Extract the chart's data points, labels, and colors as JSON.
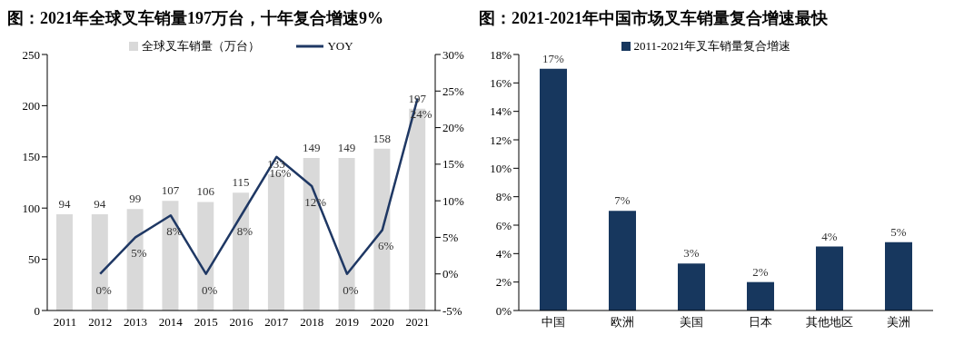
{
  "chart_data": [
    {
      "type": "bar",
      "title": "图：2021年全球叉车销量197万台，十年复合增速9%",
      "categories": [
        "2011",
        "2012",
        "2013",
        "2014",
        "2015",
        "2016",
        "2017",
        "2018",
        "2019",
        "2020",
        "2021"
      ],
      "series": [
        {
          "name": "全球叉车销量（万台）",
          "color": "#d9d9d9",
          "values": [
            94,
            94,
            99,
            107,
            106,
            115,
            133,
            149,
            149,
            158,
            197
          ],
          "value_labels": [
            "94",
            "94",
            "99",
            "107",
            "106",
            "115",
            "133",
            "149",
            "149",
            "158",
            "197"
          ]
        },
        {
          "name": "YOY",
          "type": "line",
          "axis": "y2",
          "color": "#1f3864",
          "values": [
            null,
            0,
            5,
            8,
            0,
            8,
            16,
            12,
            0,
            6,
            24
          ],
          "value_labels": [
            null,
            "0%",
            "5%",
            "8%",
            "0%",
            "8%",
            "16%",
            "12%",
            "0%",
            "6%",
            "24%"
          ]
        }
      ],
      "ylim": [
        0,
        250
      ],
      "yticks": [
        0,
        50,
        100,
        150,
        200,
        250
      ],
      "y2lim": [
        -5,
        30
      ],
      "y2ticks": [
        {
          "value": -5,
          "label": "-5%"
        },
        {
          "value": 0,
          "label": "0%"
        },
        {
          "value": 5,
          "label": "5%"
        },
        {
          "value": 10,
          "label": "10%"
        },
        {
          "value": 15,
          "label": "15%"
        },
        {
          "value": 20,
          "label": "20%"
        },
        {
          "value": 25,
          "label": "25%"
        },
        {
          "value": 30,
          "label": "30%"
        }
      ],
      "legend": "top"
    },
    {
      "type": "bar",
      "title": "图：2021-2021年中国市场叉车销量复合增速最快",
      "categories": [
        "中国",
        "欧洲",
        "美国",
        "日本",
        "其他地区",
        "美洲"
      ],
      "series": [
        {
          "name": "2011-2021年叉车销量复合增速",
          "color": "#17375e",
          "values": [
            17,
            7,
            3.3,
            2,
            4.5,
            4.8
          ],
          "value_labels": [
            "17%",
            "7%",
            "3%",
            "2%",
            "4%",
            "5%"
          ]
        }
      ],
      "ylim": [
        0,
        18
      ],
      "yticks": [
        {
          "value": 0,
          "label": "0%"
        },
        {
          "value": 2,
          "label": "2%"
        },
        {
          "value": 4,
          "label": "4%"
        },
        {
          "value": 6,
          "label": "6%"
        },
        {
          "value": 8,
          "label": "8%"
        },
        {
          "value": 10,
          "label": "10%"
        },
        {
          "value": 12,
          "label": "12%"
        },
        {
          "value": 14,
          "label": "14%"
        },
        {
          "value": 16,
          "label": "16%"
        },
        {
          "value": 18,
          "label": "18%"
        }
      ],
      "legend": "top"
    }
  ]
}
